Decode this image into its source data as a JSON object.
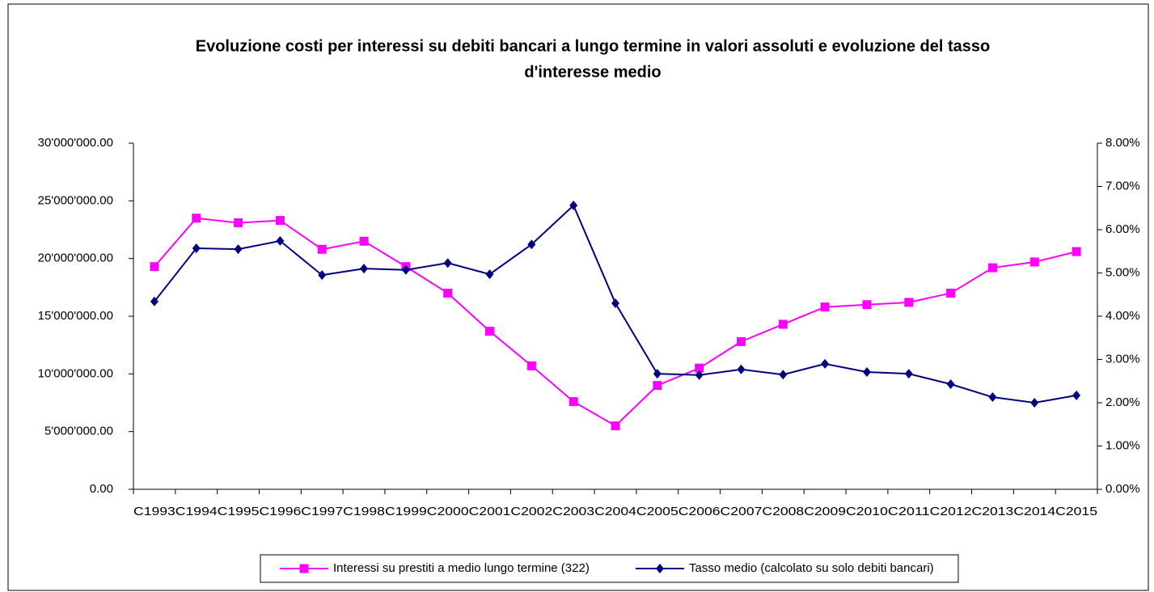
{
  "chart_data": {
    "type": "line",
    "title": [
      "Evoluzione costi per  interessi su debiti bancari  a lungo termine in valori assoluti e evoluzione del tasso",
      "d'interesse medio"
    ],
    "categories": [
      "C1993",
      "C1994",
      "C1995",
      "C1996",
      "C1997",
      "C1998",
      "C1999",
      "C2000",
      "C2001",
      "C2002",
      "C2003",
      "C2004",
      "C2005",
      "C2006",
      "C2007",
      "C2008",
      "C2009",
      "C2010",
      "C2011",
      "C2012",
      "C2013",
      "C2014",
      "C2015"
    ],
    "series": [
      {
        "name": "Interessi su prestiti a medio lungo termine (322)",
        "color": "#ff00ff",
        "marker": "square",
        "values": [
          19300000,
          23500000,
          23100000,
          23300000,
          20800000,
          21500000,
          19300000,
          17000000,
          13700000,
          10700000,
          7600000,
          5500000,
          9000000,
          10500000,
          12800000,
          14300000,
          15800000,
          16000000,
          16200000,
          17000000,
          19200000,
          19700000,
          20600000
        ]
      },
      {
        "name": "Tasso medio (calcolato su solo debiti bancari)",
        "color": "#000080",
        "marker": "diamond",
        "axis": "y2",
        "values": [
          4.34,
          5.57,
          5.55,
          5.74,
          4.95,
          5.1,
          5.07,
          5.23,
          4.97,
          5.66,
          6.56,
          4.3,
          2.67,
          2.64,
          2.77,
          2.65,
          2.9,
          2.71,
          2.67,
          2.43,
          2.13,
          2.0,
          2.17
        ]
      }
    ],
    "ylim": [
      0,
      30000000
    ],
    "yticks": [
      {
        "value": 0,
        "label": "0.00"
      },
      {
        "value": 5000000,
        "label": "5'000'000.00"
      },
      {
        "value": 10000000,
        "label": "10'000'000.00"
      },
      {
        "value": 15000000,
        "label": "15'000'000.00"
      },
      {
        "value": 20000000,
        "label": "20'000'000.00"
      },
      {
        "value": 25000000,
        "label": "25'000'000.00"
      },
      {
        "value": 30000000,
        "label": "30'000'000.00"
      }
    ],
    "y2lim": [
      0,
      8
    ],
    "y2ticks": [
      {
        "value": 0,
        "label": "0.00%"
      },
      {
        "value": 1,
        "label": "1.00%"
      },
      {
        "value": 2,
        "label": "2.00%"
      },
      {
        "value": 3,
        "label": "3.00%"
      },
      {
        "value": 4,
        "label": "4.00%"
      },
      {
        "value": 5,
        "label": "5.00%"
      },
      {
        "value": 6,
        "label": "6.00%"
      },
      {
        "value": 7,
        "label": "7.00%"
      },
      {
        "value": 8,
        "label": "8.00%"
      }
    ],
    "legend": "bottom",
    "grid": false
  }
}
